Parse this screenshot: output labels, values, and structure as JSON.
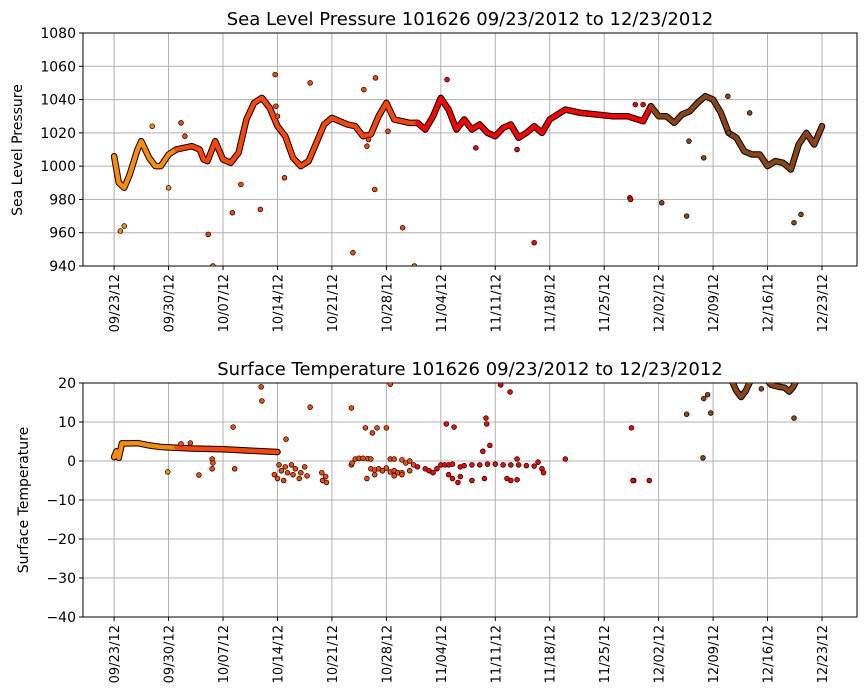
{
  "chart_data": [
    {
      "type": "scatter",
      "title": "Sea Level Pressure 101626  09/23/2012 to 12/23/2012",
      "ylabel": "Sea Level Pressure",
      "xlabel": "",
      "ylim": [
        940,
        1080
      ],
      "yticks": [
        940,
        960,
        980,
        1000,
        1020,
        1040,
        1060,
        1080
      ],
      "xlim_days": [
        -4,
        95.5
      ],
      "xtick_labels": [
        "09/23/12",
        "09/30/12",
        "10/07/12",
        "10/14/12",
        "10/21/12",
        "10/28/12",
        "11/04/12",
        "11/11/12",
        "11/18/12",
        "11/25/12",
        "12/02/12",
        "12/09/12",
        "12/16/12",
        "12/23/12"
      ],
      "grid": true,
      "x_unit": "days since 09/23/12",
      "track": [
        [
          0,
          1006
        ],
        [
          0.6,
          990
        ],
        [
          1.3,
          987
        ],
        [
          2,
          995
        ],
        [
          3,
          1010
        ],
        [
          3.5,
          1015
        ],
        [
          4.5,
          1005
        ],
        [
          5.3,
          1000
        ],
        [
          6,
          1000
        ],
        [
          7,
          1007
        ],
        [
          8,
          1010
        ],
        [
          9,
          1011
        ],
        [
          10,
          1012
        ],
        [
          11,
          1010
        ],
        [
          11.5,
          1004
        ],
        [
          12,
          1003
        ],
        [
          13,
          1015
        ],
        [
          14,
          1004
        ],
        [
          15,
          1002
        ],
        [
          16,
          1008
        ],
        [
          17,
          1028
        ],
        [
          18,
          1038
        ],
        [
          19,
          1041
        ],
        [
          20,
          1035
        ],
        [
          21,
          1024
        ],
        [
          22,
          1018
        ],
        [
          23,
          1005
        ],
        [
          24,
          1000
        ],
        [
          25,
          1003
        ],
        [
          26,
          1014
        ],
        [
          27,
          1025
        ],
        [
          28,
          1029
        ],
        [
          29,
          1027
        ],
        [
          30,
          1025
        ],
        [
          31,
          1024
        ],
        [
          32,
          1018
        ],
        [
          33,
          1019
        ],
        [
          34,
          1030
        ],
        [
          35,
          1038
        ],
        [
          36,
          1028
        ],
        [
          37,
          1027
        ],
        [
          38,
          1026
        ],
        [
          39,
          1026
        ],
        [
          40,
          1022
        ],
        [
          41,
          1030
        ],
        [
          42,
          1041
        ],
        [
          43,
          1034
        ],
        [
          44,
          1022
        ],
        [
          45,
          1028
        ],
        [
          46,
          1022
        ],
        [
          47,
          1025
        ],
        [
          48,
          1020
        ],
        [
          49,
          1018
        ],
        [
          50,
          1023
        ],
        [
          51,
          1025
        ],
        [
          52,
          1017
        ],
        [
          53,
          1020
        ],
        [
          54,
          1024
        ],
        [
          55,
          1020
        ],
        [
          56,
          1028
        ],
        [
          57,
          1031
        ],
        [
          58,
          1034
        ],
        [
          60,
          1032
        ],
        [
          62,
          1031
        ],
        [
          64,
          1030
        ],
        [
          66,
          1030
        ],
        [
          68,
          1027
        ],
        [
          69,
          1036
        ],
        [
          70,
          1030
        ],
        [
          71,
          1030
        ],
        [
          72,
          1026
        ],
        [
          73,
          1031
        ],
        [
          74,
          1033
        ],
        [
          75,
          1038
        ],
        [
          76,
          1042
        ],
        [
          77,
          1040
        ],
        [
          78,
          1032
        ],
        [
          79,
          1020
        ],
        [
          80,
          1017
        ],
        [
          81,
          1009
        ],
        [
          82,
          1007
        ],
        [
          83,
          1007
        ],
        [
          84,
          1000
        ],
        [
          85,
          1003
        ],
        [
          86,
          1002
        ],
        [
          87,
          998
        ],
        [
          88,
          1013
        ],
        [
          89,
          1020
        ],
        [
          90,
          1013
        ],
        [
          91,
          1024
        ]
      ],
      "tracks_extra": [],
      "outliers": [
        [
          0.8,
          961
        ],
        [
          1.3,
          964
        ],
        [
          4.9,
          1024
        ],
        [
          7,
          987
        ],
        [
          8.6,
          1026
        ],
        [
          9.1,
          1018
        ],
        [
          12.1,
          959
        ],
        [
          12.7,
          940
        ],
        [
          15.2,
          972
        ],
        [
          16.3,
          989
        ],
        [
          18.8,
          974
        ],
        [
          20.7,
          1055
        ],
        [
          20.8,
          1036
        ],
        [
          21,
          1030
        ],
        [
          21.9,
          993
        ],
        [
          25.2,
          1050
        ],
        [
          30.7,
          948
        ],
        [
          32.1,
          1046
        ],
        [
          32.5,
          1012
        ],
        [
          32.7,
          1016
        ],
        [
          33.5,
          986
        ],
        [
          33.6,
          1053
        ],
        [
          35.2,
          1021
        ],
        [
          37.1,
          963
        ],
        [
          38.6,
          940
        ],
        [
          42.8,
          1052
        ],
        [
          46.5,
          1011
        ],
        [
          51.8,
          1010
        ],
        [
          54,
          954
        ],
        [
          66.3,
          981
        ],
        [
          66.4,
          980
        ],
        [
          67,
          1037
        ],
        [
          68,
          1037
        ],
        [
          70.4,
          978
        ],
        [
          73.6,
          970
        ],
        [
          73.9,
          1015
        ],
        [
          75.8,
          1005
        ],
        [
          78.9,
          1042
        ],
        [
          79,
          1020
        ],
        [
          81.7,
          1032
        ],
        [
          87.4,
          966
        ],
        [
          88.3,
          971
        ]
      ]
    },
    {
      "type": "scatter",
      "title": "Surface Temperature 101626  09/23/2012 to 12/23/2012",
      "ylabel": "Surface Temperature",
      "xlabel": "",
      "ylim": [
        -40,
        20
      ],
      "yticks": [
        -40,
        -30,
        -20,
        -10,
        0,
        10,
        20
      ],
      "xlim_days": [
        -4,
        95.5
      ],
      "xtick_labels": [
        "09/23/12",
        "09/30/12",
        "10/07/12",
        "10/14/12",
        "10/21/12",
        "10/28/12",
        "11/04/12",
        "11/11/12",
        "11/18/12",
        "11/25/12",
        "12/02/12",
        "12/09/12",
        "12/16/12",
        "12/23/12"
      ],
      "grid": true,
      "x_unit": "days since 09/23/12",
      "track": [
        [
          0,
          1
        ],
        [
          0.3,
          2.5
        ],
        [
          0.6,
          0.8
        ],
        [
          1,
          4.5
        ],
        [
          2,
          4.5
        ],
        [
          3,
          4.6
        ],
        [
          4.5,
          4
        ],
        [
          6,
          3.6
        ],
        [
          8,
          3.4
        ],
        [
          10,
          3.2
        ],
        [
          14,
          3
        ],
        [
          18,
          2.6
        ],
        [
          21,
          2.3
        ]
      ],
      "tracks_extra": [
        [
          [
            79.3,
            21
          ],
          [
            80,
            18
          ],
          [
            80.6,
            16.4
          ],
          [
            81.2,
            18
          ],
          [
            81.9,
            21
          ]
        ],
        [
          [
            83.8,
            21
          ],
          [
            84.5,
            19.5
          ],
          [
            85.5,
            19
          ],
          [
            86.2,
            18.8
          ],
          [
            86.8,
            17.8
          ],
          [
            87.3,
            19
          ],
          [
            87.8,
            21
          ]
        ]
      ],
      "outliers": [
        [
          20.6,
          -3.5
        ],
        [
          21,
          -4.5
        ],
        [
          21.2,
          -1
        ],
        [
          21.5,
          -2.5
        ],
        [
          21.8,
          -5
        ],
        [
          22,
          -1.5
        ],
        [
          22.3,
          -3
        ],
        [
          22.8,
          -1
        ],
        [
          23,
          -3.5
        ],
        [
          23.3,
          -2
        ],
        [
          23.8,
          -4.5
        ],
        [
          24,
          -3
        ],
        [
          24.5,
          -1.5
        ],
        [
          24.8,
          -3.8
        ],
        [
          26.7,
          -3
        ],
        [
          26.8,
          -5
        ],
        [
          27.2,
          -4
        ],
        [
          27.3,
          -5.5
        ],
        [
          30.5,
          -1
        ],
        [
          30.6,
          -0.5
        ],
        [
          31,
          0.5
        ],
        [
          31.5,
          0.7
        ],
        [
          32,
          0.7
        ],
        [
          32.6,
          0.6
        ],
        [
          33,
          0.5
        ],
        [
          33,
          -2
        ],
        [
          33.5,
          -2.3
        ],
        [
          34,
          -2
        ],
        [
          34.5,
          -2.5
        ],
        [
          35,
          -1.8
        ],
        [
          35.5,
          -2.8
        ],
        [
          36,
          -2.5
        ],
        [
          36.5,
          -3
        ],
        [
          37,
          -3
        ],
        [
          35.5,
          0.5
        ],
        [
          36,
          0.5
        ],
        [
          37,
          0.3
        ],
        [
          37.5,
          -0.5
        ],
        [
          38,
          0
        ],
        [
          38.5,
          -1
        ],
        [
          39,
          -1.5
        ],
        [
          40,
          -2
        ],
        [
          32.5,
          -4.5
        ],
        [
          33.5,
          -3.5
        ],
        [
          36,
          -3.8
        ],
        [
          37,
          -3.5
        ],
        [
          38,
          -2.5
        ],
        [
          40.5,
          -2.5
        ],
        [
          41,
          -3
        ],
        [
          41.5,
          -2
        ],
        [
          42,
          -1
        ],
        [
          42.5,
          -1
        ],
        [
          43,
          -1
        ],
        [
          43.5,
          -0.8
        ],
        [
          44.5,
          -1.5
        ],
        [
          45,
          -1.2
        ],
        [
          46,
          -1
        ],
        [
          47,
          -1
        ],
        [
          48,
          -0.8
        ],
        [
          49,
          -0.8
        ],
        [
          50,
          -1
        ],
        [
          51,
          -1
        ],
        [
          52,
          -1
        ],
        [
          53,
          -1.2
        ],
        [
          54,
          -1.3
        ],
        [
          55,
          -2
        ],
        [
          55.2,
          -3
        ],
        [
          43,
          -3.5
        ],
        [
          43.5,
          -4.5
        ],
        [
          44.2,
          -5.5
        ],
        [
          44.5,
          -4
        ],
        [
          46,
          -5
        ],
        [
          47.6,
          -4.5
        ],
        [
          50.5,
          -4.5
        ],
        [
          51,
          -5
        ],
        [
          51.8,
          -4.8
        ],
        [
          66.8,
          -5
        ],
        [
          68.8,
          -5
        ],
        [
          18.9,
          19
        ],
        [
          19,
          15.4
        ],
        [
          15.3,
          8.7
        ],
        [
          25.2,
          13.8
        ],
        [
          30.5,
          13.6
        ],
        [
          35.5,
          19.7
        ],
        [
          32.3,
          8.5
        ],
        [
          33.8,
          8.5
        ],
        [
          35,
          8.5
        ],
        [
          33.2,
          7.2
        ],
        [
          22.1,
          5.6
        ],
        [
          42.7,
          9.5
        ],
        [
          43.7,
          8.7
        ],
        [
          47.8,
          11
        ],
        [
          47.9,
          9.5
        ],
        [
          48.3,
          4
        ],
        [
          47.4,
          2.5
        ],
        [
          49.7,
          19.5
        ],
        [
          50.9,
          17.7
        ],
        [
          51.8,
          0.5
        ],
        [
          54.5,
          -0.3
        ],
        [
          6.9,
          -2.8
        ],
        [
          10.9,
          -3.6
        ],
        [
          12.6,
          0.5
        ],
        [
          12.7,
          -0.5
        ],
        [
          12.6,
          -2
        ],
        [
          15.5,
          -2
        ],
        [
          8.6,
          4.4
        ],
        [
          9.8,
          4.6
        ],
        [
          58,
          0.5
        ],
        [
          66.5,
          8.5
        ],
        [
          66.7,
          -5
        ],
        [
          73.6,
          12
        ],
        [
          75.8,
          16
        ],
        [
          76.3,
          17
        ],
        [
          76.7,
          12.3
        ],
        [
          75.7,
          0.8
        ],
        [
          83.2,
          18.5
        ],
        [
          87.4,
          11
        ]
      ]
    }
  ],
  "colors": {
    "early": "#ff8c00",
    "mid": "#ff4500",
    "late": "#ff0000",
    "end": "#8b4513",
    "grid": "#b0b0b0"
  },
  "color_thresholds_days": [
    8,
    39,
    69
  ]
}
